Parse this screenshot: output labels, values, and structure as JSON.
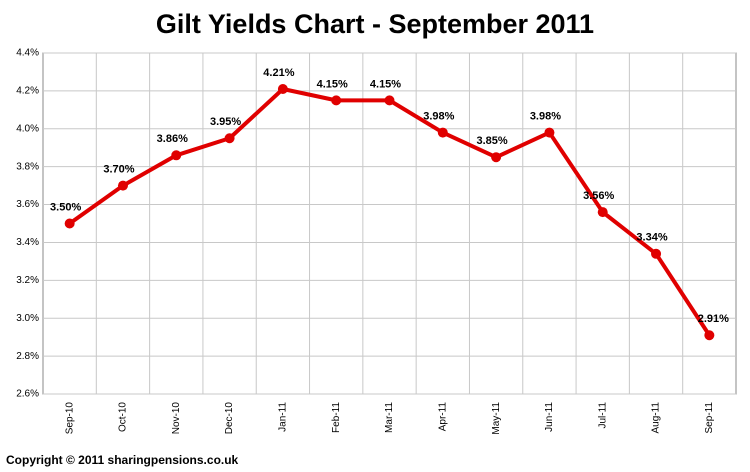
{
  "chart_data": {
    "type": "line",
    "title": "Gilt Yields Chart - September 2011",
    "categories": [
      "Sep-10",
      "Oct-10",
      "Nov-10",
      "Dec-10",
      "Jan-11",
      "Feb-11",
      "Mar-11",
      "Apr-11",
      "May-11",
      "Jun-11",
      "Jul-11",
      "Aug-11",
      "Sep-11"
    ],
    "series": [
      {
        "color": "#e00000",
        "values": [
          3.5,
          3.7,
          3.86,
          3.95,
          4.21,
          4.15,
          4.15,
          3.98,
          3.85,
          3.98,
          3.56,
          3.34,
          2.91
        ],
        "value_labels": [
          "3.50%",
          "3.70%",
          "3.86%",
          "3.95%",
          "4.21%",
          "4.15%",
          "4.15%",
          "3.98%",
          "3.85%",
          "3.98%",
          "3.56%",
          "3.34%",
          "2.91%"
        ]
      }
    ],
    "ylim": [
      2.6,
      4.4
    ],
    "yticks": [
      {
        "value": 2.6,
        "label": "2.6%"
      },
      {
        "value": 2.8,
        "label": "2.8%"
      },
      {
        "value": 3.0,
        "label": "3.0%"
      },
      {
        "value": 3.2,
        "label": "3.2%"
      },
      {
        "value": 3.4,
        "label": "3.4%"
      },
      {
        "value": 3.6,
        "label": "3.6%"
      },
      {
        "value": 3.8,
        "label": "3.8%"
      },
      {
        "value": 4.0,
        "label": "4.0%"
      },
      {
        "value": 4.2,
        "label": "4.2%"
      },
      {
        "value": 4.4,
        "label": "4.4%"
      }
    ],
    "grid": true
  },
  "footer": "Copyright © 2011 sharingpensions.co.uk"
}
